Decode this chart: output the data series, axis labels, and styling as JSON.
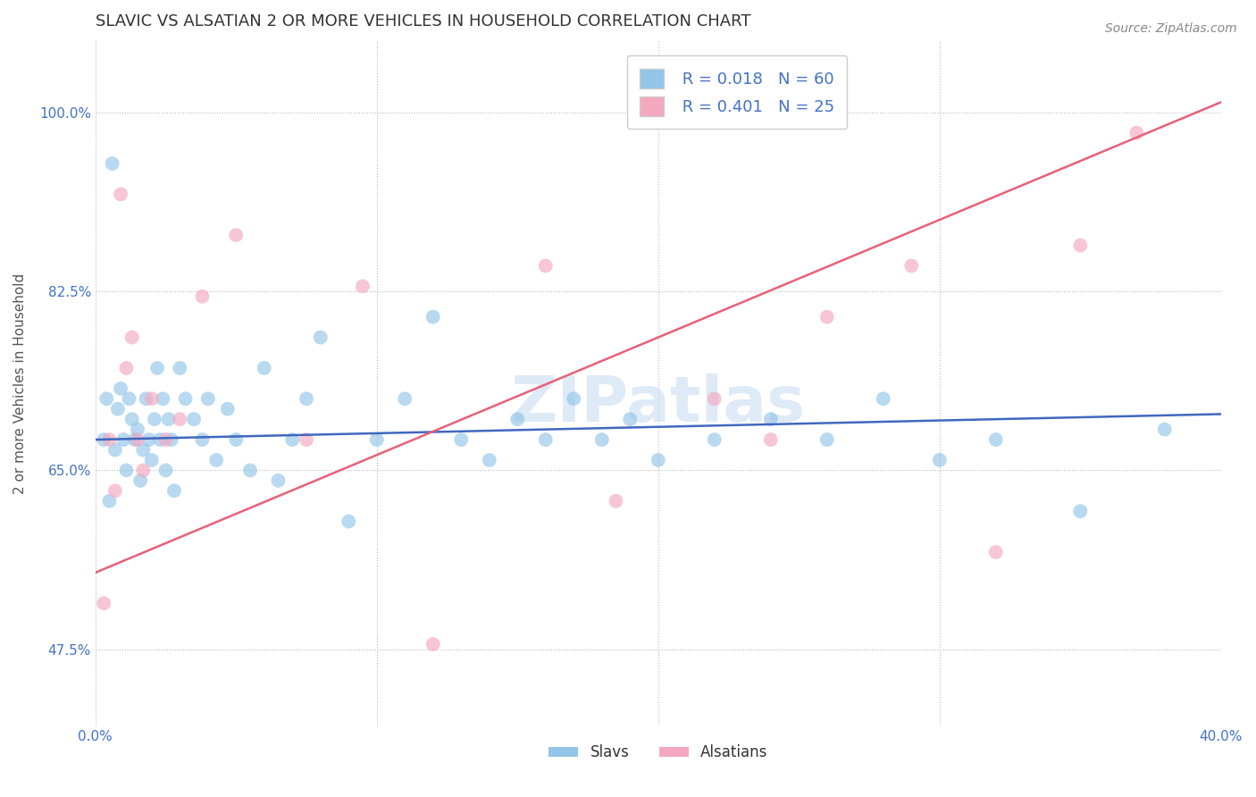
{
  "title": "SLAVIC VS ALSATIAN 2 OR MORE VEHICLES IN HOUSEHOLD CORRELATION CHART",
  "source": "Source: ZipAtlas.com",
  "ylabel": "2 or more Vehicles in Household",
  "xmin": 0.0,
  "xmax": 40.0,
  "ymin": 40.0,
  "ymax": 107.0,
  "yticks": [
    47.5,
    65.0,
    82.5,
    100.0
  ],
  "background_color": "#ffffff",
  "slavs_color": "#92C5E8",
  "alsatians_color": "#F4A8C0",
  "slavs_line_color": "#3F68C0",
  "alsatians_line_color": "#E8607A",
  "legend_slavs_R": "0.018",
  "legend_slavs_N": "60",
  "legend_alsatians_R": "0.401",
  "legend_alsatians_N": "25",
  "slavs_x": [
    0.3,
    0.4,
    0.5,
    0.6,
    0.7,
    0.8,
    0.9,
    1.0,
    1.1,
    1.2,
    1.3,
    1.4,
    1.5,
    1.6,
    1.7,
    1.8,
    1.9,
    2.0,
    2.1,
    2.2,
    2.3,
    2.4,
    2.5,
    2.6,
    2.7,
    2.8,
    3.0,
    3.2,
    3.5,
    3.8,
    4.0,
    4.3,
    4.7,
    5.0,
    5.5,
    6.0,
    6.5,
    7.0,
    7.5,
    8.0,
    9.0,
    10.0,
    11.0,
    12.0,
    13.0,
    14.0,
    15.0,
    16.0,
    17.0,
    18.0,
    19.0,
    20.0,
    22.0,
    24.0,
    26.0,
    28.0,
    30.0,
    32.0,
    35.0,
    38.0
  ],
  "slavs_y": [
    68.0,
    72.0,
    62.0,
    95.0,
    67.0,
    71.0,
    73.0,
    68.0,
    65.0,
    72.0,
    70.0,
    68.0,
    69.0,
    64.0,
    67.0,
    72.0,
    68.0,
    66.0,
    70.0,
    75.0,
    68.0,
    72.0,
    65.0,
    70.0,
    68.0,
    63.0,
    75.0,
    72.0,
    70.0,
    68.0,
    72.0,
    66.0,
    71.0,
    68.0,
    65.0,
    75.0,
    64.0,
    68.0,
    72.0,
    78.0,
    60.0,
    68.0,
    72.0,
    80.0,
    68.0,
    66.0,
    70.0,
    68.0,
    72.0,
    68.0,
    70.0,
    66.0,
    68.0,
    70.0,
    68.0,
    72.0,
    66.0,
    68.0,
    61.0,
    69.0
  ],
  "alsatians_x": [
    0.3,
    0.5,
    0.7,
    0.9,
    1.1,
    1.3,
    1.5,
    1.7,
    2.0,
    2.5,
    3.0,
    3.8,
    5.0,
    7.5,
    9.5,
    12.0,
    16.0,
    18.5,
    22.0,
    24.0,
    26.0,
    29.0,
    32.0,
    35.0,
    37.0
  ],
  "alsatians_y": [
    52.0,
    68.0,
    63.0,
    92.0,
    75.0,
    78.0,
    68.0,
    65.0,
    72.0,
    68.0,
    70.0,
    82.0,
    88.0,
    68.0,
    83.0,
    48.0,
    85.0,
    62.0,
    72.0,
    68.0,
    80.0,
    85.0,
    57.0,
    87.0,
    98.0
  ],
  "watermark": "ZIPatlas",
  "slavs_marker_size": 130,
  "alsatians_marker_size": 130
}
